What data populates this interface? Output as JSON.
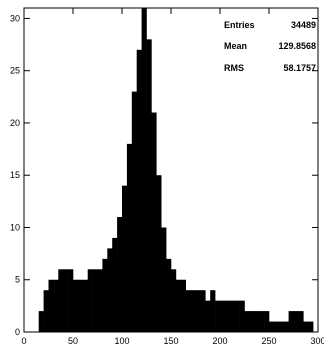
{
  "chart_data": {
    "type": "bar",
    "title": "",
    "xlabel": "",
    "ylabel": "",
    "xlim": [
      0,
      300
    ],
    "ylim": [
      0,
      31
    ],
    "bin_width": 5,
    "x_ticks": [
      0,
      50,
      100,
      150,
      200,
      250,
      300
    ],
    "y_ticks": [
      0,
      5,
      10,
      15,
      20,
      25,
      30
    ],
    "grid": false,
    "series": [
      {
        "color": "#000000",
        "bin_starts": [
          0,
          5,
          10,
          15,
          20,
          25,
          30,
          35,
          40,
          45,
          50,
          55,
          60,
          65,
          70,
          75,
          80,
          85,
          90,
          95,
          100,
          105,
          110,
          115,
          120,
          125,
          130,
          135,
          140,
          145,
          150,
          155,
          160,
          165,
          170,
          175,
          180,
          185,
          190,
          195,
          200,
          205,
          210,
          215,
          220,
          225,
          230,
          235,
          240,
          245,
          250,
          255,
          260,
          265,
          270,
          275,
          280,
          285,
          290,
          295
        ],
        "values": [
          0,
          0,
          0,
          2,
          4,
          5,
          5,
          6,
          6,
          6,
          5,
          5,
          5,
          6,
          6,
          6,
          7,
          8,
          9,
          11,
          14,
          18,
          23,
          27,
          31,
          28,
          21,
          15,
          10,
          7,
          6,
          5,
          5,
          4,
          4,
          4,
          4,
          3,
          4,
          3,
          3,
          3,
          3,
          3,
          3,
          2,
          2,
          2,
          2,
          2,
          1,
          1,
          1,
          1,
          2,
          2,
          2,
          1,
          1,
          0
        ]
      },
      {
        "color": "#0000ff",
        "bin_starts": [
          0,
          5,
          10,
          15,
          20,
          25,
          30,
          35,
          40,
          45,
          50,
          55,
          60,
          65,
          70,
          75,
          80,
          85,
          90,
          95,
          100,
          105,
          110,
          115,
          120,
          125,
          130,
          135,
          140,
          145,
          150,
          155,
          160,
          165,
          170,
          175,
          180,
          185,
          190,
          195,
          200,
          205,
          210,
          215,
          220,
          225,
          230,
          235,
          240,
          245,
          250,
          255,
          260,
          265,
          270,
          275,
          280,
          285,
          290,
          295
        ],
        "values": [
          0,
          0,
          0,
          0,
          0,
          0,
          0,
          0,
          0,
          0,
          0,
          0,
          0,
          0,
          0,
          0,
          0,
          0,
          0,
          0,
          0,
          0,
          0,
          0,
          0,
          0,
          0,
          0,
          0,
          0,
          0,
          0,
          0,
          0,
          0,
          0,
          0,
          0,
          0,
          0,
          0,
          0,
          0,
          0,
          0,
          0,
          0,
          0,
          0,
          0,
          0,
          0,
          0,
          0,
          0,
          0,
          0,
          0,
          0,
          0
        ]
      }
    ],
    "stats": {
      "rows": [
        {
          "label": "Entries",
          "value": "34489"
        },
        {
          "label": "Mean",
          "value": "129.8568"
        },
        {
          "label": "RMS",
          "value": "58.1757"
        }
      ]
    }
  }
}
